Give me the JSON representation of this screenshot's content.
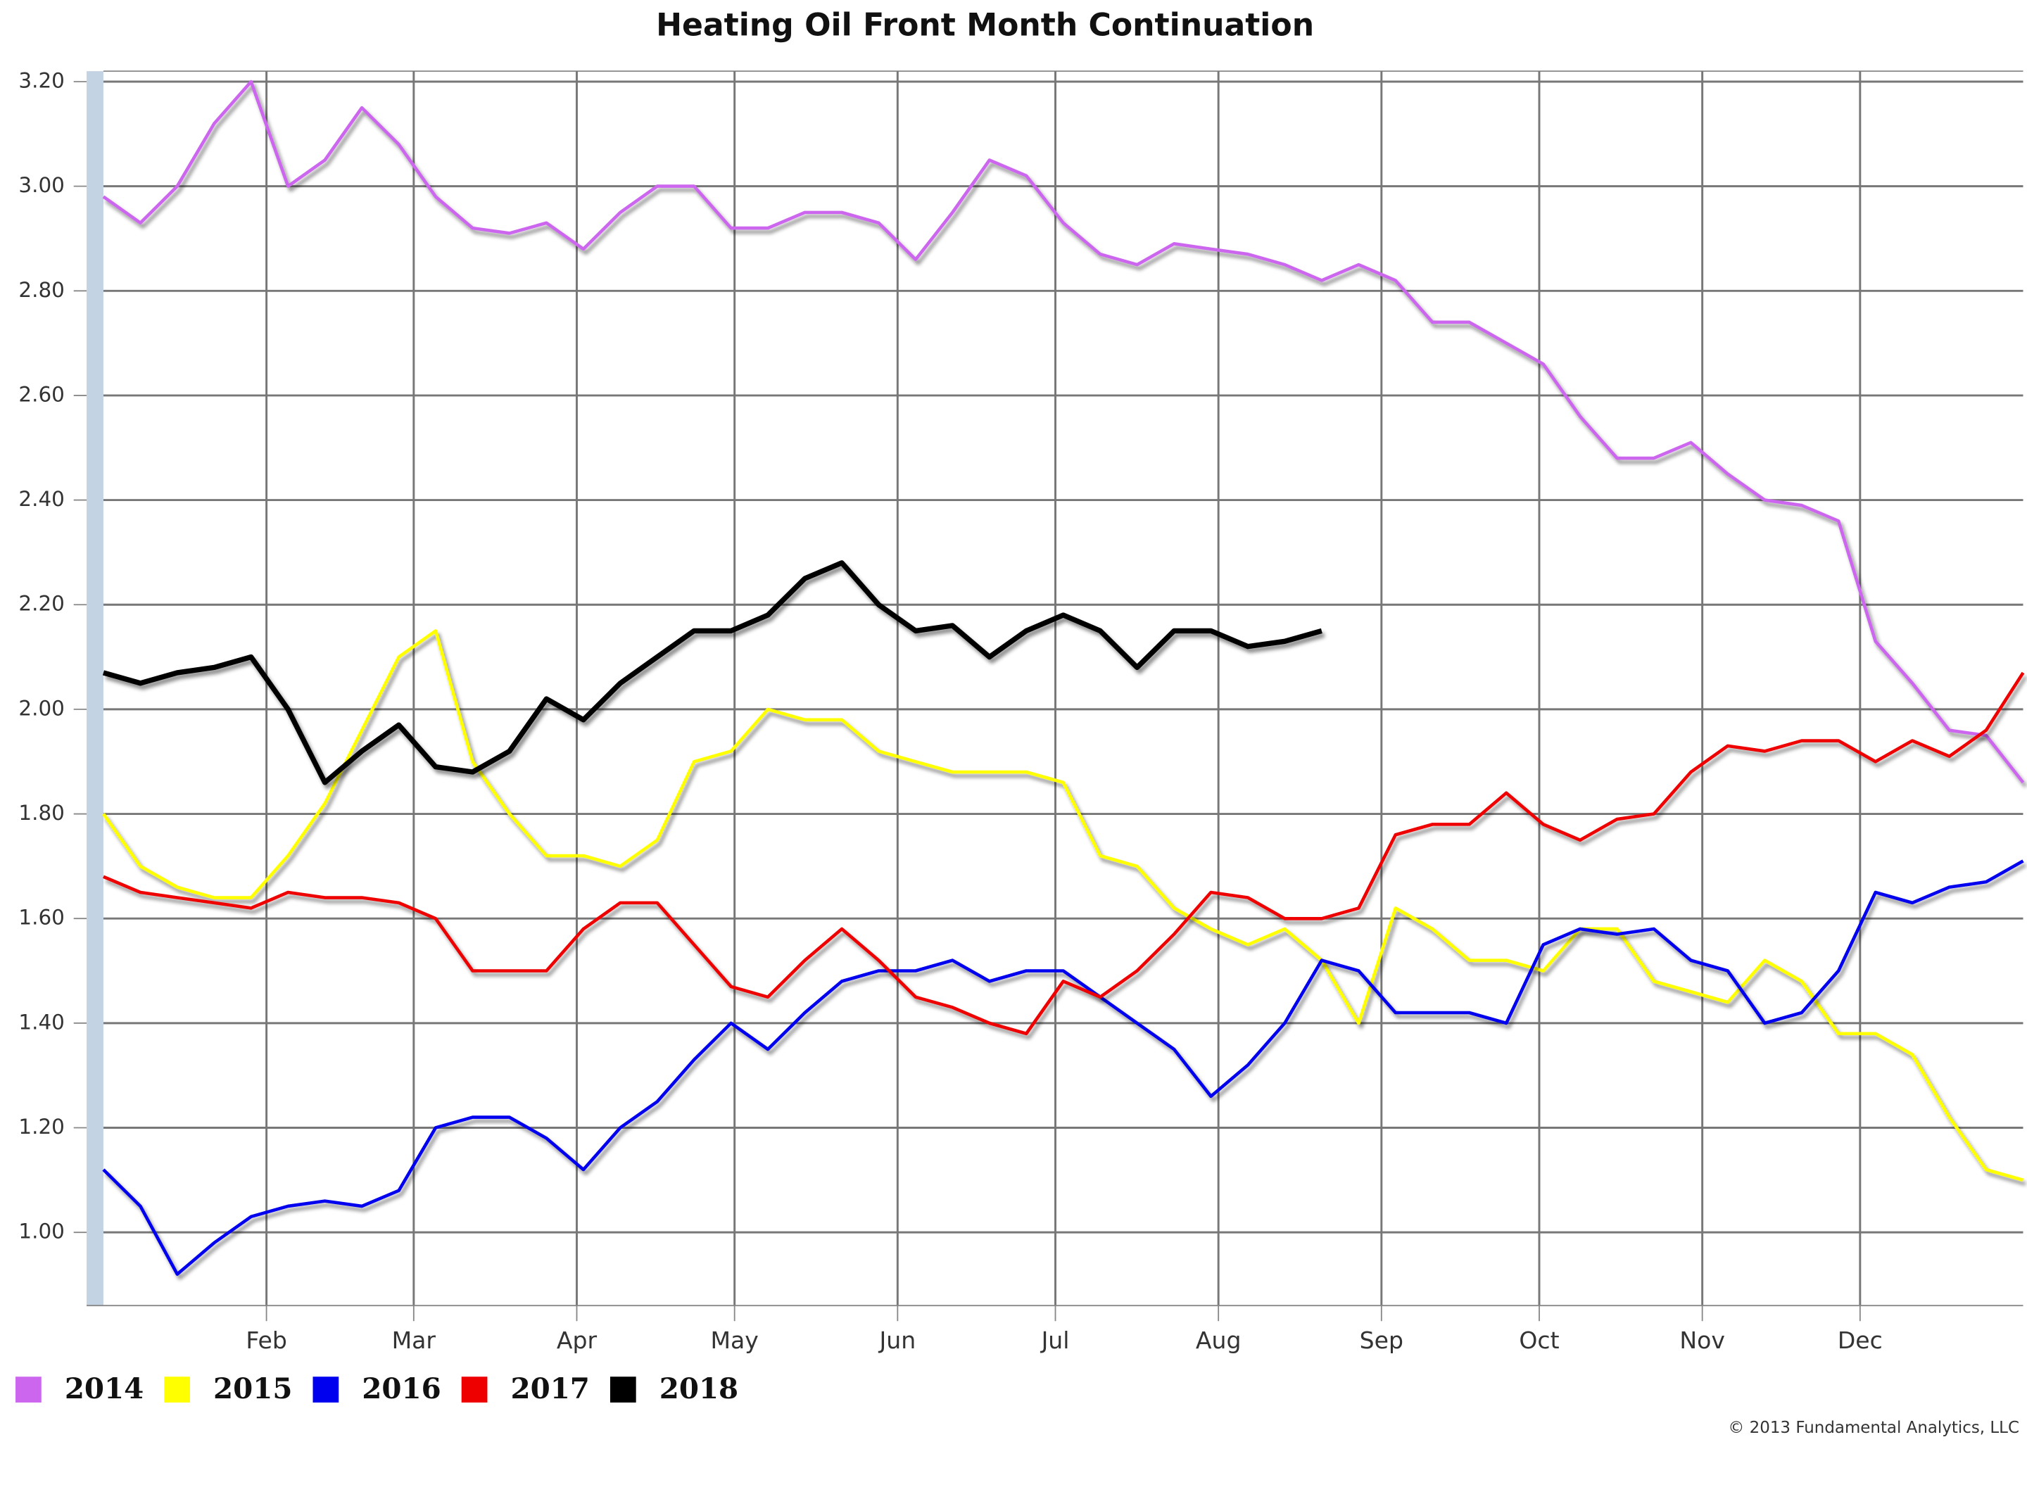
{
  "chart_data": {
    "type": "line",
    "title": "Heating Oil Front Month Continuation",
    "credit": "© 2013 Fundamental Analytics, LLC",
    "xticks": [
      "Feb",
      "Mar",
      "Apr",
      "May",
      "Jun",
      "Jul",
      "Aug",
      "Sep",
      "Oct",
      "Nov",
      "Dec"
    ],
    "ylim": [
      0.86,
      3.22
    ],
    "yticks": [
      {
        "value": 1.0,
        "label": "1.00"
      },
      {
        "value": 1.2,
        "label": "1.20"
      },
      {
        "value": 1.4,
        "label": "1.40"
      },
      {
        "value": 1.6,
        "label": "1.60"
      },
      {
        "value": 1.8,
        "label": "1.80"
      },
      {
        "value": 2.0,
        "label": "2.00"
      },
      {
        "value": 2.2,
        "label": "2.20"
      },
      {
        "value": 2.4,
        "label": "2.40"
      },
      {
        "value": 2.6,
        "label": "2.60"
      },
      {
        "value": 2.8,
        "label": "2.80"
      },
      {
        "value": 3.0,
        "label": "3.00"
      },
      {
        "value": 3.2,
        "label": "3.20"
      }
    ],
    "grid": true,
    "legend": "bottom-left",
    "series": [
      {
        "name": "2014",
        "color": "#cc66ee",
        "values": [
          2.98,
          2.93,
          3.0,
          3.12,
          3.2,
          3.0,
          3.05,
          3.15,
          3.08,
          2.98,
          2.92,
          2.91,
          2.93,
          2.88,
          2.95,
          3.0,
          3.0,
          2.92,
          2.92,
          2.95,
          2.95,
          2.93,
          2.86,
          2.95,
          3.05,
          3.02,
          2.93,
          2.87,
          2.85,
          2.89,
          2.88,
          2.87,
          2.85,
          2.82,
          2.85,
          2.82,
          2.74,
          2.74,
          2.7,
          2.66,
          2.56,
          2.48,
          2.48,
          2.51,
          2.45,
          2.4,
          2.39,
          2.36,
          2.13,
          2.05,
          1.96,
          1.95,
          1.86
        ]
      },
      {
        "name": "2015",
        "color": "#ffff00",
        "values": [
          1.8,
          1.7,
          1.66,
          1.64,
          1.64,
          1.72,
          1.82,
          1.96,
          2.1,
          2.15,
          1.9,
          1.8,
          1.72,
          1.72,
          1.7,
          1.75,
          1.9,
          1.92,
          2.0,
          1.98,
          1.98,
          1.92,
          1.9,
          1.88,
          1.88,
          1.88,
          1.86,
          1.72,
          1.7,
          1.62,
          1.58,
          1.55,
          1.58,
          1.52,
          1.4,
          1.62,
          1.58,
          1.52,
          1.52,
          1.5,
          1.58,
          1.58,
          1.48,
          1.46,
          1.44,
          1.52,
          1.48,
          1.38,
          1.38,
          1.34,
          1.22,
          1.12,
          1.1
        ]
      },
      {
        "name": "2016",
        "color": "#0000ee",
        "values": [
          1.12,
          1.05,
          0.92,
          0.98,
          1.03,
          1.05,
          1.06,
          1.05,
          1.08,
          1.2,
          1.22,
          1.22,
          1.18,
          1.12,
          1.2,
          1.25,
          1.33,
          1.4,
          1.35,
          1.42,
          1.48,
          1.5,
          1.5,
          1.52,
          1.48,
          1.5,
          1.5,
          1.45,
          1.4,
          1.35,
          1.26,
          1.32,
          1.4,
          1.52,
          1.5,
          1.42,
          1.42,
          1.42,
          1.4,
          1.55,
          1.58,
          1.57,
          1.58,
          1.52,
          1.5,
          1.4,
          1.42,
          1.5,
          1.65,
          1.63,
          1.66,
          1.67,
          1.71
        ]
      },
      {
        "name": "2017",
        "color": "#ee0000",
        "values": [
          1.68,
          1.65,
          1.64,
          1.63,
          1.62,
          1.65,
          1.64,
          1.64,
          1.63,
          1.6,
          1.5,
          1.5,
          1.5,
          1.58,
          1.63,
          1.63,
          1.55,
          1.47,
          1.45,
          1.52,
          1.58,
          1.52,
          1.45,
          1.43,
          1.4,
          1.38,
          1.48,
          1.45,
          1.5,
          1.57,
          1.65,
          1.64,
          1.6,
          1.6,
          1.62,
          1.76,
          1.78,
          1.78,
          1.84,
          1.78,
          1.75,
          1.79,
          1.8,
          1.88,
          1.93,
          1.92,
          1.94,
          1.94,
          1.9,
          1.94,
          1.91,
          1.96,
          2.07
        ]
      },
      {
        "name": "2018",
        "color": "#000000",
        "values": [
          2.07,
          2.05,
          2.07,
          2.08,
          2.1,
          2.0,
          1.86,
          1.92,
          1.97,
          1.89,
          1.88,
          1.92,
          2.02,
          1.98,
          2.05,
          2.1,
          2.15,
          2.15,
          2.18,
          2.25,
          2.28,
          2.2,
          2.15,
          2.16,
          2.1,
          2.15,
          2.18,
          2.15,
          2.08,
          2.15,
          2.15,
          2.12,
          2.13,
          2.15,
          null,
          null,
          null,
          null,
          null,
          null,
          null,
          null,
          null,
          null,
          null,
          null,
          null,
          null,
          null,
          null,
          null,
          null,
          null
        ]
      }
    ]
  }
}
